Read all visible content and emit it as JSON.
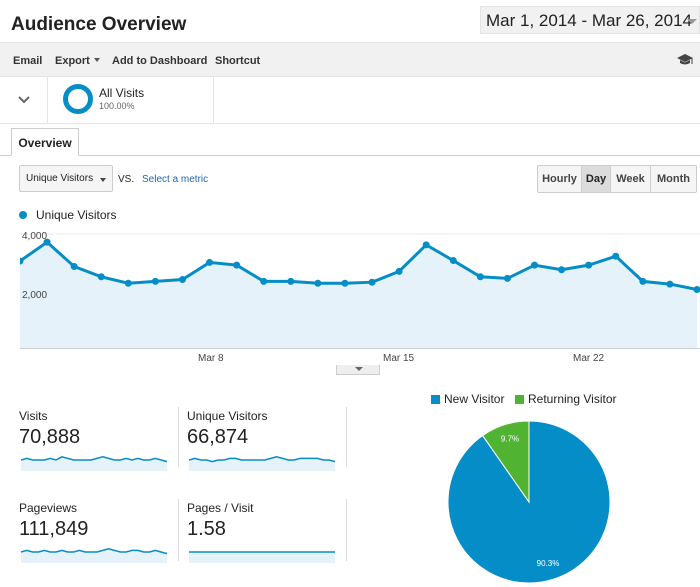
{
  "header": {
    "title": "Audience Overview",
    "date_range": "Mar 1, 2014 - Mar 26, 2014"
  },
  "toolbar": {
    "items": [
      "Email",
      "Export",
      "Add to Dashboard",
      "Shortcut"
    ],
    "icons": [
      "chevron-down-icon",
      "graduation-cap-icon"
    ]
  },
  "segment": {
    "name": "All Visits",
    "percent": "100.00%"
  },
  "tabs": {
    "overview": "Overview"
  },
  "controls": {
    "metric": "Unique Visitors",
    "vs": "VS.",
    "select_metric": "Select a metric",
    "granularity": [
      "Hourly",
      "Day",
      "Week",
      "Month"
    ],
    "active_granularity": "Day"
  },
  "colors": {
    "series": "#058dc7",
    "returning": "#50b432",
    "area": "#e6f2f9"
  },
  "chart_data": [
    {
      "type": "area",
      "series": [
        {
          "name": "Unique Visitors",
          "values": [
            3000,
            3700,
            2800,
            2420,
            2180,
            2250,
            2320,
            2950,
            2850,
            2250,
            2250,
            2180,
            2180,
            2220,
            2620,
            3600,
            3020,
            2420,
            2360,
            2850,
            2680,
            2850,
            3180,
            2250,
            2150,
            1950
          ]
        }
      ],
      "x_tick_labels": [
        "Mar 8",
        "Mar 15",
        "Mar 22"
      ],
      "y_tick_labels": [
        "4,000",
        "2,000"
      ],
      "ylim": [
        0,
        4000
      ]
    },
    {
      "type": "pie",
      "categories": [
        "New Visitor",
        "Returning Visitor"
      ],
      "values": [
        90.3,
        9.7
      ],
      "labels": [
        "90.3%",
        "9.7%"
      ]
    }
  ],
  "stats": [
    {
      "label": "Visits",
      "value": "70,888",
      "spark": [
        5,
        6,
        5,
        5,
        5,
        6,
        5,
        7,
        6,
        5,
        5,
        5,
        5,
        6,
        7,
        6,
        5,
        5,
        6,
        5,
        6,
        5,
        5,
        6,
        5,
        4
      ]
    },
    {
      "label": "Unique Visitors",
      "value": "66,874",
      "spark": [
        5,
        6,
        5,
        5,
        4,
        5,
        5,
        6,
        6,
        5,
        5,
        5,
        5,
        5,
        6,
        7,
        6,
        5,
        5,
        6,
        6,
        6,
        6,
        5,
        5,
        4
      ]
    },
    {
      "label": "Pageviews",
      "value": "111,849",
      "spark": [
        5,
        6,
        5,
        5,
        6,
        5,
        5,
        6,
        5,
        5,
        6,
        5,
        5,
        5,
        6,
        7,
        6,
        5,
        5,
        6,
        6,
        5,
        5,
        6,
        5,
        4
      ]
    },
    {
      "label": "Pages / Visit",
      "value": "1.58",
      "spark": [
        5,
        5,
        5,
        5,
        5,
        5,
        5,
        5,
        5,
        5,
        5,
        5,
        5,
        5,
        5,
        5,
        5,
        5,
        5,
        5,
        5,
        5,
        5,
        5,
        5,
        5
      ]
    }
  ]
}
